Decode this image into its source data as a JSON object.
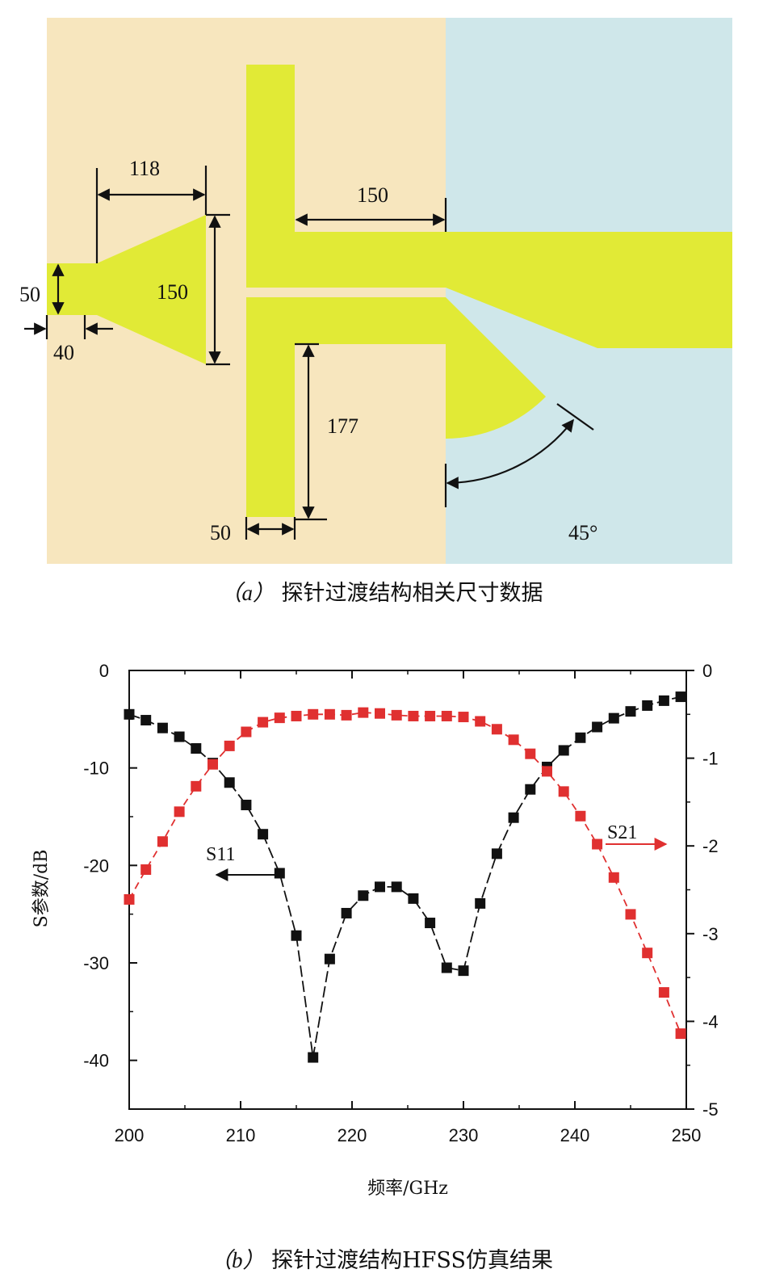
{
  "figure_a": {
    "caption_label": "（a）",
    "caption_text": "探针过渡结构相关尺寸数据",
    "dimensions": {
      "taper_length": "118",
      "taper_height": "150",
      "taper_height_inner": "150",
      "feed_width": "50",
      "feed_length": "40",
      "probe_length": "150",
      "stub_length": "177",
      "stub_width": "50",
      "sector_angle": "45°"
    },
    "colors": {
      "substrate_left": "#F7E6BE",
      "substrate_right": "#CFE7EA",
      "metal": "#E1EA36"
    }
  },
  "figure_b": {
    "caption_label": "（b）",
    "caption_text": "探针过渡结构HFSS仿真结果",
    "annotations": {
      "s11": "S11",
      "s21": "S21"
    }
  },
  "chart_data": {
    "type": "line",
    "xlabel": "频率/GHz",
    "ylabel": "S参数/dB",
    "xlim": [
      200,
      250
    ],
    "ylim_left": [
      -45,
      0
    ],
    "ylim_right": [
      -5,
      0
    ],
    "x_ticks": [
      "200",
      "210",
      "220",
      "230",
      "240",
      "250"
    ],
    "y_ticks_left": [
      "0",
      "-10",
      "-20",
      "-30",
      "-40"
    ],
    "y_ticks_right": [
      "0",
      "-1",
      "-2",
      "-3",
      "-4",
      "-5"
    ],
    "grid": false,
    "series": [
      {
        "name": "S11",
        "axis": "left",
        "color": "#111111",
        "marker": "square",
        "line": "solid-dashed",
        "x": [
          200,
          201.5,
          203,
          204.5,
          206,
          207.5,
          209,
          210.5,
          212,
          213.5,
          215,
          216.5,
          218,
          219.5,
          221,
          222.5,
          224,
          225.5,
          227,
          228.5,
          230,
          231.5,
          233,
          234.5,
          236,
          237.5,
          239,
          240.5,
          242,
          243.5,
          245,
          246.5,
          248,
          249.5
        ],
        "values": [
          -4.5,
          -5.1,
          -5.9,
          -6.8,
          -8.0,
          -9.5,
          -11.5,
          -13.8,
          -16.8,
          -20.8,
          -27.2,
          -39.7,
          -29.6,
          -24.9,
          -23.1,
          -22.2,
          -22.2,
          -23.4,
          -25.9,
          -30.5,
          -30.8,
          -23.9,
          -18.8,
          -15.1,
          -12.2,
          -9.9,
          -8.2,
          -6.9,
          -5.8,
          -4.9,
          -4.2,
          -3.6,
          -3.1,
          -2.7
        ]
      },
      {
        "name": "S21",
        "axis": "right",
        "color": "#E03030",
        "marker": "square",
        "line": "dashed",
        "x": [
          200,
          201.5,
          203,
          204.5,
          206,
          207.5,
          209,
          210.5,
          212,
          213.5,
          215,
          216.5,
          218,
          219.5,
          221,
          222.5,
          224,
          225.5,
          227,
          228.5,
          230,
          231.5,
          233,
          234.5,
          236,
          237.5,
          239,
          240.5,
          242,
          243.5,
          245,
          246.5,
          248,
          249.5
        ],
        "values": [
          -2.61,
          -2.27,
          -1.95,
          -1.61,
          -1.32,
          -1.07,
          -0.86,
          -0.7,
          -0.59,
          -0.54,
          -0.52,
          -0.5,
          -0.5,
          -0.51,
          -0.48,
          -0.49,
          -0.51,
          -0.52,
          -0.52,
          -0.52,
          -0.53,
          -0.58,
          -0.67,
          -0.79,
          -0.95,
          -1.15,
          -1.38,
          -1.66,
          -1.98,
          -2.36,
          -2.78,
          -3.22,
          -3.67,
          -4.14
        ]
      }
    ]
  }
}
